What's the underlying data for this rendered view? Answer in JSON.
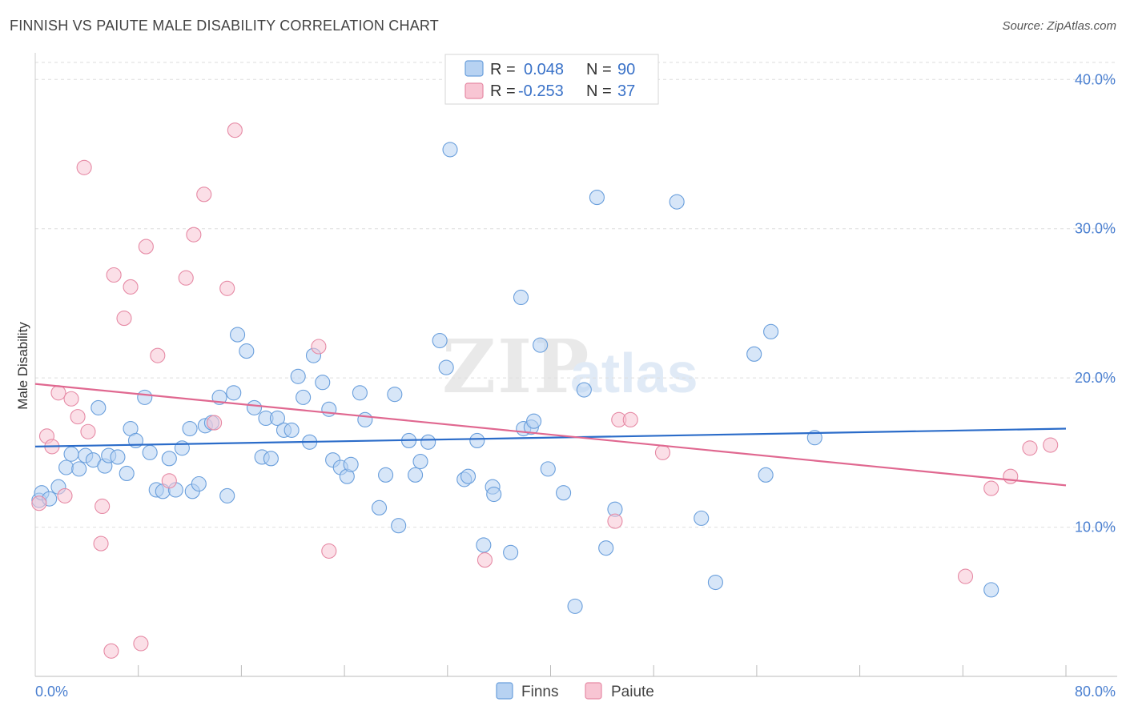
{
  "header": {
    "title": "FINNISH VS PAIUTE MALE DISABILITY CORRELATION CHART",
    "source": "Source: ZipAtlas.com"
  },
  "watermark": {
    "zip": "ZIP",
    "atlas": "atlas"
  },
  "colors": {
    "finns_fill": "#b7d2f2",
    "finns_stroke": "#6a9fdc",
    "finns_line": "#2b6cc9",
    "paiute_fill": "#f8c5d3",
    "paiute_stroke": "#e68aa5",
    "paiute_line": "#e06890",
    "accent_text": "#3a72c8"
  },
  "stats": {
    "finns": {
      "r_label": "R =",
      "r_value": "0.048",
      "n_label": "N =",
      "n_value": "90"
    },
    "paiute": {
      "r_label": "R =",
      "r_value": "-0.253",
      "n_label": "N =",
      "n_value": "37"
    }
  },
  "chart_data": {
    "type": "scatter",
    "title": "FINNISH VS PAIUTE MALE DISABILITY CORRELATION CHART",
    "xlabel": "",
    "ylabel": "Male Disability",
    "xlim": [
      0,
      80
    ],
    "ylim": [
      0,
      42
    ],
    "x_tick_labels": [
      "0.0%",
      "80.0%"
    ],
    "y_ticks": [
      10,
      20,
      30,
      40
    ],
    "y_tick_labels": [
      "10.0%",
      "20.0%",
      "30.0%",
      "40.0%"
    ],
    "legend": [
      "Finns",
      "Paiute"
    ],
    "series": [
      {
        "name": "Finns",
        "trend": {
          "x": [
            0,
            80
          ],
          "y": [
            15.4,
            16.6
          ]
        },
        "points": [
          [
            0.3,
            11.8
          ],
          [
            0.5,
            12.3
          ],
          [
            1.1,
            11.9
          ],
          [
            1.8,
            12.7
          ],
          [
            2.4,
            14.0
          ],
          [
            2.8,
            14.9
          ],
          [
            3.4,
            13.9
          ],
          [
            3.9,
            14.8
          ],
          [
            4.5,
            14.5
          ],
          [
            4.9,
            18.0
          ],
          [
            5.4,
            14.1
          ],
          [
            5.7,
            14.8
          ],
          [
            6.4,
            14.7
          ],
          [
            7.1,
            13.6
          ],
          [
            7.4,
            16.6
          ],
          [
            7.8,
            15.8
          ],
          [
            8.5,
            18.7
          ],
          [
            8.9,
            15.0
          ],
          [
            9.4,
            12.5
          ],
          [
            9.9,
            12.4
          ],
          [
            10.4,
            14.6
          ],
          [
            10.9,
            12.5
          ],
          [
            11.4,
            15.3
          ],
          [
            12.0,
            16.6
          ],
          [
            12.2,
            12.4
          ],
          [
            12.7,
            12.9
          ],
          [
            13.2,
            16.8
          ],
          [
            13.7,
            17.0
          ],
          [
            14.3,
            18.7
          ],
          [
            14.9,
            12.1
          ],
          [
            15.4,
            19.0
          ],
          [
            15.7,
            22.9
          ],
          [
            16.4,
            21.8
          ],
          [
            17.0,
            18.0
          ],
          [
            17.6,
            14.7
          ],
          [
            17.9,
            17.3
          ],
          [
            18.3,
            14.6
          ],
          [
            18.8,
            17.3
          ],
          [
            19.3,
            16.5
          ],
          [
            19.9,
            16.5
          ],
          [
            20.4,
            20.1
          ],
          [
            20.8,
            18.7
          ],
          [
            21.3,
            15.7
          ],
          [
            21.6,
            21.5
          ],
          [
            22.3,
            19.7
          ],
          [
            22.8,
            17.9
          ],
          [
            23.1,
            14.5
          ],
          [
            23.7,
            14.0
          ],
          [
            24.2,
            13.4
          ],
          [
            24.5,
            14.2
          ],
          [
            25.2,
            19.0
          ],
          [
            25.6,
            17.2
          ],
          [
            26.7,
            11.3
          ],
          [
            27.2,
            13.5
          ],
          [
            27.9,
            18.9
          ],
          [
            28.2,
            10.1
          ],
          [
            29.0,
            15.8
          ],
          [
            29.5,
            13.5
          ],
          [
            29.9,
            14.4
          ],
          [
            30.5,
            15.7
          ],
          [
            31.4,
            22.5
          ],
          [
            31.9,
            20.7
          ],
          [
            32.2,
            35.3
          ],
          [
            33.3,
            13.2
          ],
          [
            33.6,
            13.4
          ],
          [
            34.3,
            15.8
          ],
          [
            34.8,
            8.8
          ],
          [
            35.5,
            12.7
          ],
          [
            35.6,
            12.2
          ],
          [
            36.9,
            8.3
          ],
          [
            37.7,
            25.4
          ],
          [
            37.9,
            16.6
          ],
          [
            38.5,
            16.7
          ],
          [
            38.7,
            17.1
          ],
          [
            39.2,
            22.2
          ],
          [
            39.8,
            13.9
          ],
          [
            41.0,
            12.3
          ],
          [
            41.9,
            4.7
          ],
          [
            42.6,
            19.2
          ],
          [
            43.6,
            32.1
          ],
          [
            44.3,
            8.6
          ],
          [
            45.0,
            11.2
          ],
          [
            49.8,
            31.8
          ],
          [
            51.7,
            10.6
          ],
          [
            52.8,
            6.3
          ],
          [
            55.8,
            21.6
          ],
          [
            56.7,
            13.5
          ],
          [
            57.1,
            23.1
          ],
          [
            60.5,
            16.0
          ],
          [
            74.2,
            5.8
          ]
        ]
      },
      {
        "name": "Paiute",
        "trend": {
          "x": [
            0,
            80
          ],
          "y": [
            19.6,
            12.8
          ]
        },
        "points": [
          [
            0.3,
            11.6
          ],
          [
            0.9,
            16.1
          ],
          [
            1.3,
            15.4
          ],
          [
            1.8,
            19.0
          ],
          [
            2.3,
            12.1
          ],
          [
            2.8,
            18.6
          ],
          [
            3.3,
            17.4
          ],
          [
            3.8,
            34.1
          ],
          [
            4.1,
            16.4
          ],
          [
            5.1,
            8.9
          ],
          [
            5.2,
            11.4
          ],
          [
            5.9,
            1.7
          ],
          [
            6.1,
            26.9
          ],
          [
            6.9,
            24.0
          ],
          [
            7.4,
            26.1
          ],
          [
            8.2,
            2.2
          ],
          [
            8.6,
            28.8
          ],
          [
            9.5,
            21.5
          ],
          [
            10.4,
            13.1
          ],
          [
            11.7,
            26.7
          ],
          [
            12.3,
            29.6
          ],
          [
            13.1,
            32.3
          ],
          [
            13.9,
            17.0
          ],
          [
            14.9,
            26.0
          ],
          [
            15.5,
            36.6
          ],
          [
            22.0,
            22.1
          ],
          [
            22.8,
            8.4
          ],
          [
            34.9,
            7.8
          ],
          [
            45.0,
            10.4
          ],
          [
            45.3,
            17.2
          ],
          [
            46.2,
            17.2
          ],
          [
            48.7,
            15.0
          ],
          [
            72.2,
            6.7
          ],
          [
            74.2,
            12.6
          ],
          [
            75.7,
            13.4
          ],
          [
            77.2,
            15.3
          ],
          [
            78.8,
            15.5
          ]
        ]
      }
    ]
  }
}
